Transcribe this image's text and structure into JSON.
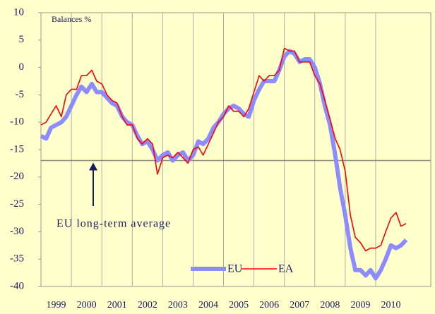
{
  "chart_data": {
    "type": "line",
    "axis_label": "Balances %",
    "annotation": "EU long-term average",
    "average": -17,
    "x": [
      1999,
      1999.17,
      1999.33,
      1999.5,
      1999.67,
      1999.83,
      2000,
      2000.17,
      2000.33,
      2000.5,
      2000.67,
      2000.83,
      2001,
      2001.17,
      2001.33,
      2001.5,
      2001.67,
      2001.83,
      2002,
      2002.17,
      2002.33,
      2002.5,
      2002.67,
      2002.83,
      2003,
      2003.17,
      2003.33,
      2003.5,
      2003.67,
      2003.83,
      2004,
      2004.17,
      2004.33,
      2004.5,
      2004.67,
      2004.83,
      2005,
      2005.17,
      2005.33,
      2005.5,
      2005.67,
      2005.83,
      2006,
      2006.17,
      2006.33,
      2006.5,
      2006.67,
      2006.83,
      2007,
      2007.17,
      2007.33,
      2007.5,
      2007.67,
      2007.83,
      2008,
      2008.17,
      2008.33,
      2008.5,
      2008.67,
      2008.83,
      2009,
      2009.17,
      2009.33,
      2009.5,
      2009.67,
      2009.83,
      2010,
      2010.17,
      2010.33,
      2010.5,
      2010.67,
      2010.83,
      2011
    ],
    "series": [
      {
        "name": "EU",
        "color": "#8c8cff",
        "values": [
          -12.5,
          -13,
          -11,
          -10.5,
          -10,
          -9,
          -7,
          -5,
          -3.5,
          -4.5,
          -3,
          -4.5,
          -4.5,
          -5.5,
          -6.5,
          -7,
          -9,
          -10,
          -10.5,
          -12.5,
          -14,
          -13.5,
          -15,
          -17,
          -16,
          -15.5,
          -17,
          -16,
          -15.5,
          -17,
          -16,
          -13.5,
          -14,
          -13,
          -11,
          -10,
          -8.5,
          -7.5,
          -7,
          -7.5,
          -8.5,
          -9,
          -6,
          -4,
          -2.5,
          -2.5,
          -2.5,
          -0.5,
          2,
          3,
          2.5,
          1,
          1.5,
          1.5,
          0,
          -3,
          -7,
          -10.5,
          -16,
          -22,
          -27,
          -33,
          -37,
          -37,
          -38,
          -37,
          -38.5,
          -37,
          -35,
          -32.5,
          -33,
          -32.5,
          -31.5
        ]
      },
      {
        "name": "EA",
        "color": "#ff0000",
        "values": [
          -10.5,
          -10,
          -8.5,
          -7,
          -9,
          -5,
          -4,
          -4,
          -1.5,
          -1.5,
          -0.5,
          -2.5,
          -3,
          -5,
          -6,
          -6.5,
          -9,
          -10.5,
          -10.5,
          -13,
          -14,
          -13,
          -14,
          -19.5,
          -16.5,
          -16,
          -16.5,
          -15.5,
          -16.5,
          -17.5,
          -15,
          -14.5,
          -16,
          -14,
          -12,
          -10,
          -9,
          -7,
          -8,
          -8,
          -9,
          -7.5,
          -4.5,
          -1.5,
          -2.5,
          -1.5,
          -1.5,
          -0.5,
          3.5,
          3,
          3,
          1,
          1,
          1,
          -1.5,
          -3,
          -6,
          -9.5,
          -13,
          -15,
          -19,
          -27,
          -31,
          -32,
          -33.5,
          -33,
          -33,
          -32.5,
          -30,
          -27.5,
          -26.5,
          -29,
          -28.5
        ]
      }
    ],
    "xlim": [
      1999,
      2011.81
    ],
    "xticks": [
      1999,
      2000,
      2001,
      2002,
      2003,
      2004,
      2005,
      2006,
      2007,
      2008,
      2009,
      2010
    ],
    "ylim": [
      -40,
      10
    ],
    "yticks": [
      10,
      5,
      0,
      -5,
      -10,
      -15,
      -20,
      -25,
      -30,
      -35,
      -40
    ],
    "grid": "x"
  }
}
